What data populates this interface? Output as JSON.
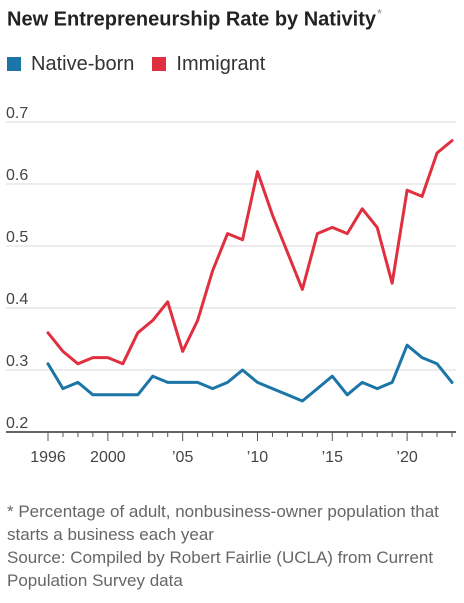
{
  "title": "New Entrepreneurship Rate by Nativity",
  "title_mark": "*",
  "legend": [
    {
      "label": "Native-born",
      "color": "#1b75a6"
    },
    {
      "label": "Immigrant",
      "color": "#e0303f"
    }
  ],
  "chart_data": {
    "type": "line",
    "title": "New Entrepreneurship Rate by Nativity",
    "x": [
      1996,
      1997,
      1998,
      1999,
      2000,
      2001,
      2002,
      2003,
      2004,
      2005,
      2006,
      2007,
      2008,
      2009,
      2010,
      2011,
      2012,
      2013,
      2014,
      2015,
      2016,
      2017,
      2018,
      2019,
      2020,
      2021,
      2022,
      2023
    ],
    "series": [
      {
        "name": "Native-born",
        "color": "#1b75a6",
        "values": [
          0.31,
          0.27,
          0.28,
          0.26,
          0.26,
          0.26,
          0.26,
          0.29,
          0.28,
          0.28,
          0.28,
          0.27,
          0.28,
          0.3,
          0.28,
          0.27,
          0.26,
          0.25,
          0.27,
          0.29,
          0.26,
          0.28,
          0.27,
          0.28,
          0.34,
          0.32,
          0.31,
          0.28
        ]
      },
      {
        "name": "Immigrant",
        "color": "#e0303f",
        "values": [
          0.36,
          0.33,
          0.31,
          0.32,
          0.32,
          0.31,
          0.36,
          0.38,
          0.41,
          0.33,
          0.38,
          0.46,
          0.52,
          0.51,
          0.62,
          0.55,
          0.49,
          0.43,
          0.52,
          0.53,
          0.52,
          0.56,
          0.53,
          0.44,
          0.59,
          0.58,
          0.65,
          0.67
        ]
      }
    ],
    "xlim": [
      1996,
      2023
    ],
    "ylim": [
      0.2,
      0.7
    ],
    "y_ticks": [
      0.2,
      0.3,
      0.4,
      0.5,
      0.6,
      0.7
    ],
    "y_tick_labels": [
      "0.2",
      "0.3",
      "0.4",
      "0.5",
      "0.6",
      "0.7"
    ],
    "x_ticks": [
      1996,
      2000,
      2005,
      2010,
      2015,
      2020
    ],
    "x_tick_labels": [
      "1996",
      "2000",
      "’05",
      "’10",
      "’15",
      "’20"
    ],
    "grid": "horizontal",
    "legend_position": "top-left"
  },
  "notes": {
    "footnote": "* Percentage of adult, nonbusiness-owner population that starts a business each year",
    "source": "Source: Compiled by Robert Fairlie (UCLA) from Current Population Survey data"
  }
}
